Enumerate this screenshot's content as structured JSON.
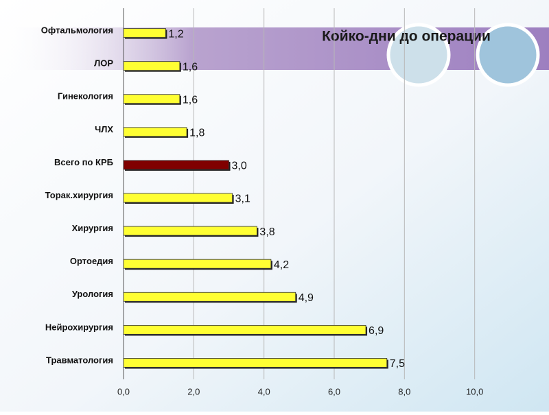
{
  "chart_data": {
    "type": "bar",
    "orientation": "horizontal",
    "title": "Койко-дни до операции",
    "categories": [
      "Офтальмология",
      "ЛОР",
      "Гинекология",
      "ЧЛХ",
      "Всего по КРБ",
      "Торак.хирургия",
      "Хирургия",
      "Ортоедия",
      "Урология",
      "Нейрохирургия",
      "Травматология"
    ],
    "values": [
      1.2,
      1.6,
      1.6,
      1.8,
      3.0,
      3.1,
      3.8,
      4.2,
      4.9,
      6.9,
      7.5
    ],
    "value_labels": [
      "1,2",
      "1,6",
      "1,6",
      "1,8",
      "3,0",
      "3,1",
      "3,8",
      "4,2",
      "4,9",
      "6,9",
      "7,5"
    ],
    "colors": [
      "#ffff33",
      "#ffff33",
      "#ffff33",
      "#ffff33",
      "#800000",
      "#ffff33",
      "#ffff33",
      "#ffff33",
      "#ffff33",
      "#ffff33",
      "#ffff33"
    ],
    "xlim": [
      0,
      12
    ],
    "xticks": [
      {
        "value": 0,
        "label": "0,0"
      },
      {
        "value": 2,
        "label": "2,0"
      },
      {
        "value": 4,
        "label": "4,0"
      },
      {
        "value": 6,
        "label": "6,0"
      },
      {
        "value": 8,
        "label": "8,0"
      },
      {
        "value": 10,
        "label": "10,0"
      }
    ],
    "grid": true
  }
}
